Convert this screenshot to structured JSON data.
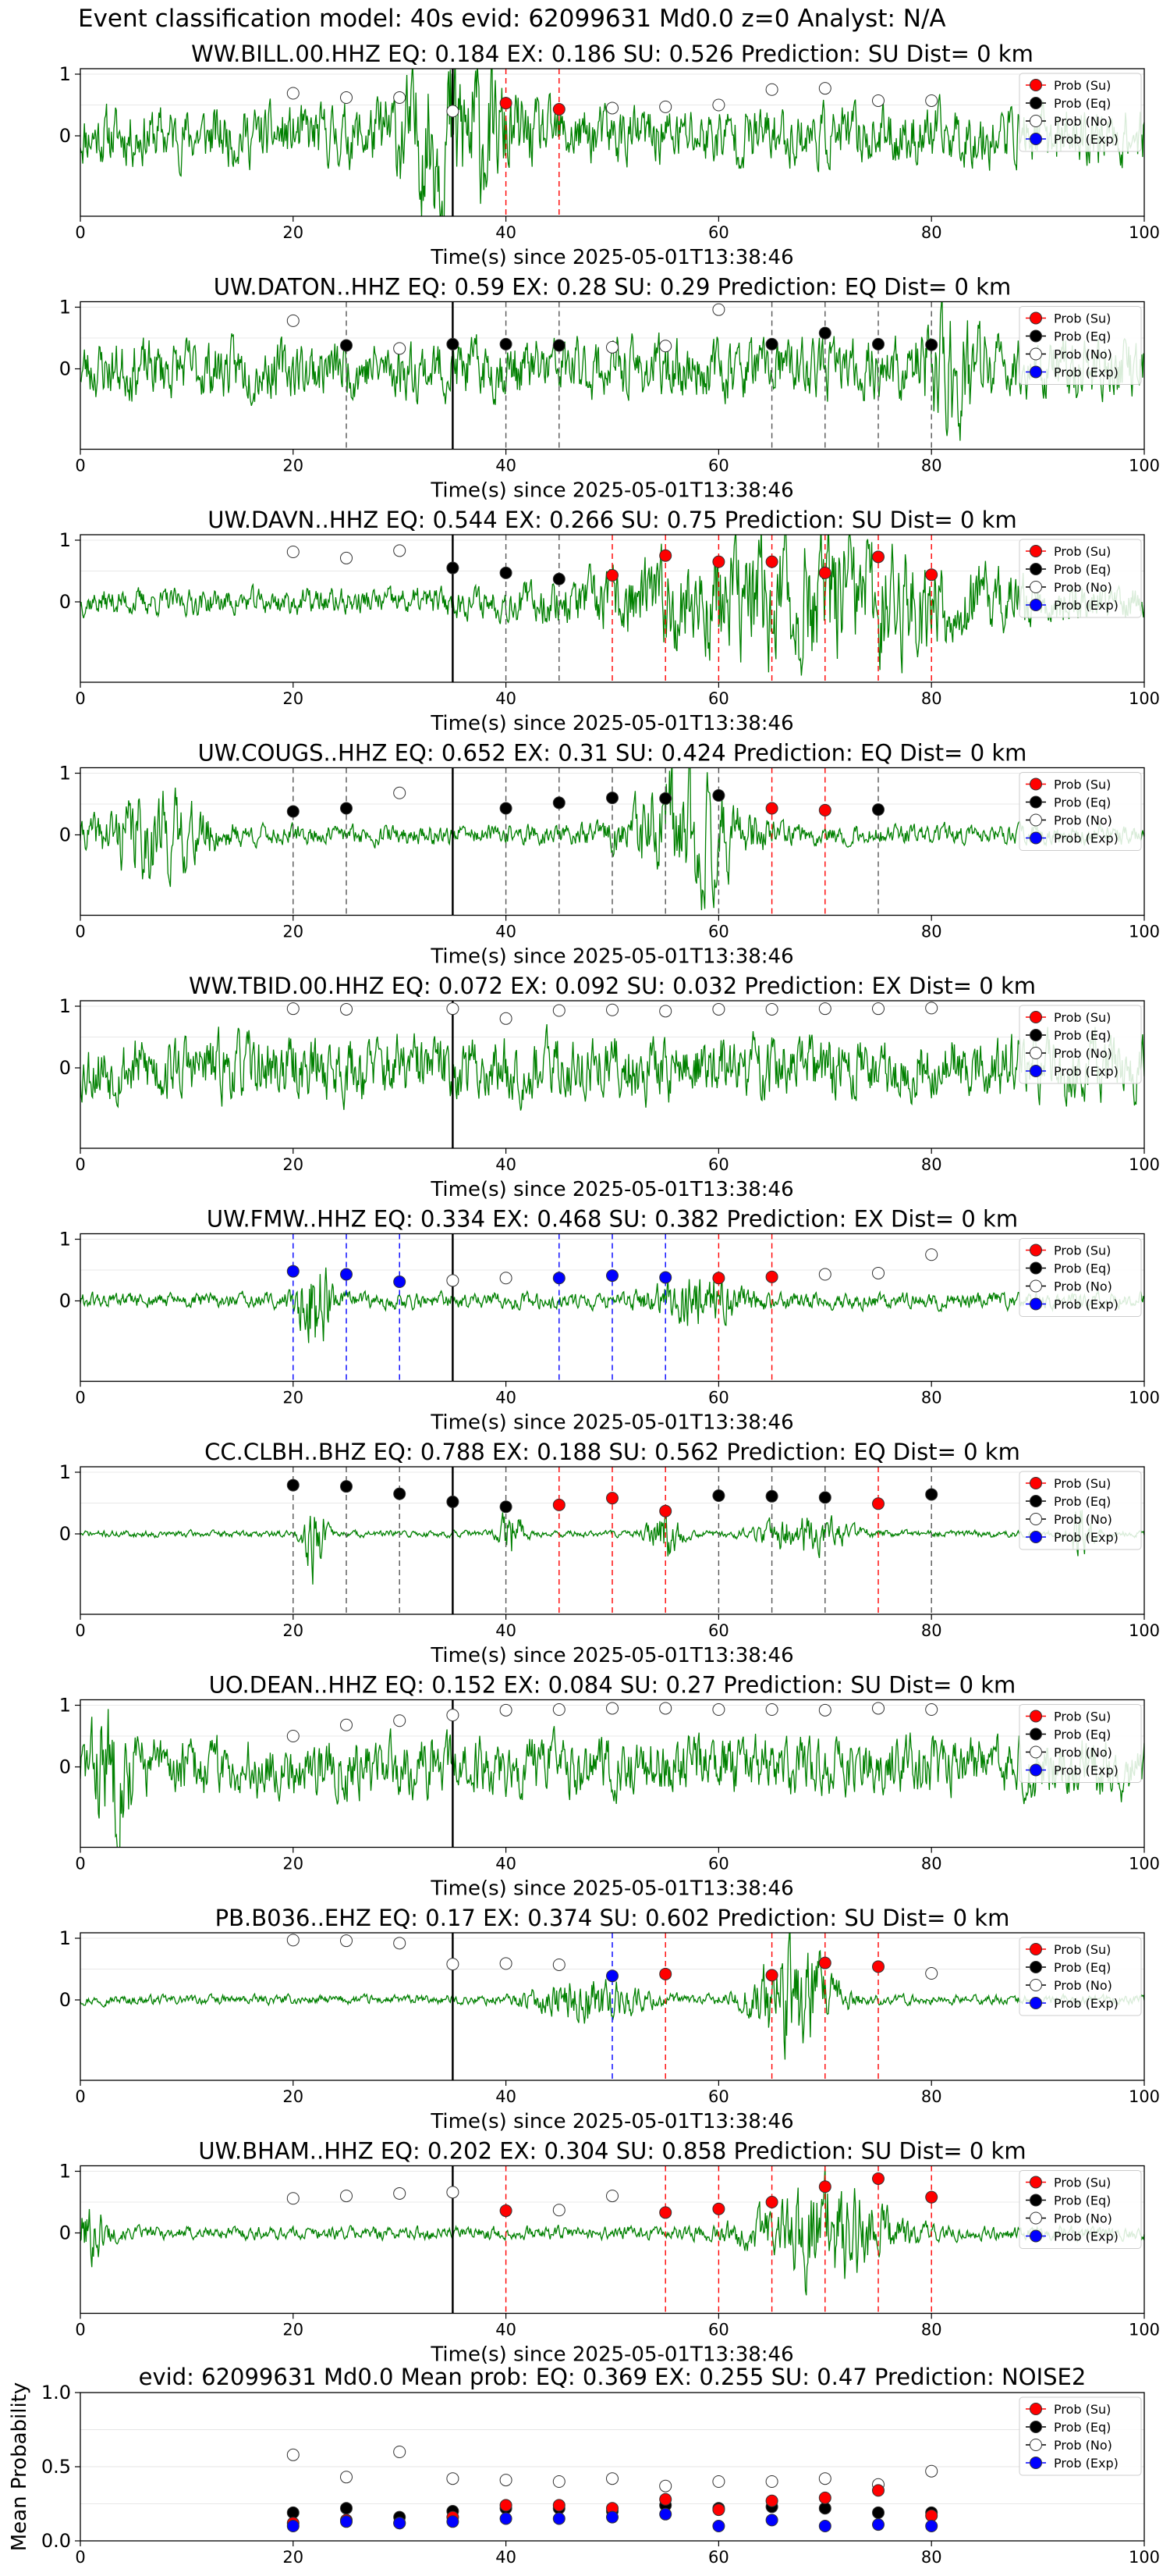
{
  "figure_title": "Event classification model: 40s evid: 62099631 Md0.0 z=0 Analyst: N/A",
  "shared": {
    "xlabel": "Time(s) since 2025-05-01T13:38:46",
    "x_ticks": [
      "0",
      "20",
      "40",
      "60",
      "80",
      "100"
    ],
    "y_ticks": [
      "1",
      "0"
    ],
    "legend": [
      "Prob (Su)",
      "Prob (Eq)",
      "Prob (No)",
      "Prob (Exp)"
    ],
    "colors": {
      "waveform": "#008000",
      "su": "#ff0000",
      "eq": "#000000",
      "no": "#ffffff",
      "exp": "#0000ff",
      "origin_line": "#000000"
    }
  },
  "chart_data": [
    {
      "type": "line",
      "station": "WW.BILL.00.HHZ",
      "title": "WW.BILL.00.HHZ    EQ: 0.184  EX: 0.186  SU: 0.526   Prediction: SU    Dist= 0 km",
      "xlim": [
        0,
        100
      ],
      "origin_x": 35,
      "waveform": {
        "seed": 11,
        "noise": 0.45,
        "bursts": [
          [
            35,
            0.9,
            5
          ]
        ]
      },
      "points": [
        [
          "no",
          20,
          0.69
        ],
        [
          "no",
          25,
          0.62
        ],
        [
          "no",
          30,
          0.62
        ],
        [
          "no",
          35,
          0.4
        ],
        [
          "su",
          40,
          0.53
        ],
        [
          "su",
          45,
          0.43
        ],
        [
          "no",
          50,
          0.45
        ],
        [
          "no",
          55,
          0.47
        ],
        [
          "no",
          60,
          0.5
        ],
        [
          "no",
          65,
          0.75
        ],
        [
          "no",
          70,
          0.77
        ],
        [
          "no",
          75,
          0.57
        ],
        [
          "no",
          80,
          0.57
        ]
      ],
      "vlines": [
        [
          "eq",
          35
        ],
        [
          "su",
          40
        ],
        [
          "su",
          45
        ]
      ]
    },
    {
      "type": "line",
      "station": "UW.DATON..HHZ",
      "title": "UW.DATON..HHZ   EQ: 0.59  EX: 0.28  SU: 0.29   Prediction: EQ    Dist= 0 km",
      "xlim": [
        0,
        100
      ],
      "origin_x": 35,
      "waveform": {
        "seed": 23,
        "noise": 0.45,
        "bursts": [
          [
            82,
            0.6,
            3
          ]
        ]
      },
      "points": [
        [
          "no",
          20,
          0.78
        ],
        [
          "eq",
          25,
          0.38
        ],
        [
          "no",
          30,
          0.33
        ],
        [
          "eq",
          35,
          0.4
        ],
        [
          "eq",
          40,
          0.4
        ],
        [
          "eq",
          45,
          0.38
        ],
        [
          "no",
          50,
          0.35
        ],
        [
          "no",
          55,
          0.37
        ],
        [
          "no",
          60,
          0.96
        ],
        [
          "eq",
          65,
          0.4
        ],
        [
          "eq",
          70,
          0.58
        ],
        [
          "eq",
          75,
          0.4
        ],
        [
          "eq",
          80,
          0.39
        ]
      ],
      "vlines": [
        [
          "eq",
          25
        ],
        [
          "eq",
          40
        ],
        [
          "eq",
          45
        ],
        [
          "eq",
          65
        ],
        [
          "eq",
          70
        ],
        [
          "eq",
          75
        ],
        [
          "eq",
          80
        ]
      ]
    },
    {
      "type": "line",
      "station": "UW.DAVN..HHZ",
      "title": "UW.DAVN..HHZ   EQ: 0.544  EX: 0.266  SU: 0.75   Prediction: SU    Dist= 0 km",
      "xlim": [
        0,
        100
      ],
      "origin_x": 35,
      "waveform": {
        "seed": 37,
        "noise": 0.2,
        "bursts": [
          [
            68,
            0.85,
            18
          ]
        ]
      },
      "points": [
        [
          "no",
          20,
          0.81
        ],
        [
          "no",
          25,
          0.71
        ],
        [
          "no",
          30,
          0.83
        ],
        [
          "eq",
          35,
          0.55
        ],
        [
          "eq",
          40,
          0.47
        ],
        [
          "eq",
          45,
          0.37
        ],
        [
          "su",
          50,
          0.43
        ],
        [
          "su",
          55,
          0.75
        ],
        [
          "su",
          60,
          0.65
        ],
        [
          "su",
          65,
          0.65
        ],
        [
          "su",
          70,
          0.47
        ],
        [
          "su",
          75,
          0.73
        ],
        [
          "su",
          80,
          0.44
        ]
      ],
      "vlines": [
        [
          "eq",
          40
        ],
        [
          "eq",
          45
        ],
        [
          "su",
          50
        ],
        [
          "su",
          55
        ],
        [
          "su",
          60
        ],
        [
          "su",
          65
        ],
        [
          "su",
          70
        ],
        [
          "su",
          75
        ],
        [
          "su",
          80
        ]
      ]
    },
    {
      "type": "line",
      "station": "UW.COUGS..HHZ",
      "title": "UW.COUGS..HHZ   EQ: 0.652  EX: 0.31  SU: 0.424   Prediction: EQ    Dist= 0 km",
      "xlim": [
        0,
        100
      ],
      "origin_x": 35,
      "waveform": {
        "seed": 41,
        "noise": 0.15,
        "bursts": [
          [
            7,
            0.55,
            5
          ],
          [
            57,
            0.9,
            5
          ]
        ]
      },
      "points": [
        [
          "eq",
          20,
          0.38
        ],
        [
          "eq",
          25,
          0.43
        ],
        [
          "no",
          30,
          0.68
        ],
        [
          "eq",
          40,
          0.43
        ],
        [
          "eq",
          45,
          0.52
        ],
        [
          "eq",
          50,
          0.6
        ],
        [
          "eq",
          55,
          0.59
        ],
        [
          "eq",
          60,
          0.64
        ],
        [
          "su",
          65,
          0.43
        ],
        [
          "su",
          70,
          0.4
        ],
        [
          "eq",
          75,
          0.41
        ]
      ],
      "vlines": [
        [
          "eq",
          20
        ],
        [
          "eq",
          25
        ],
        [
          "eq",
          40
        ],
        [
          "eq",
          45
        ],
        [
          "eq",
          50
        ],
        [
          "eq",
          55
        ],
        [
          "eq",
          60
        ],
        [
          "su",
          65
        ],
        [
          "su",
          70
        ],
        [
          "eq",
          75
        ]
      ]
    },
    {
      "type": "line",
      "station": "WW.TBID.00.HHZ",
      "title": "WW.TBID.00.HHZ   EQ: 0.072  EX: 0.092  SU: 0.032   Prediction: EX    Dist= 0 km",
      "xlim": [
        0,
        100
      ],
      "origin_x": 35,
      "waveform": {
        "seed": 53,
        "noise": 0.5,
        "bursts": []
      },
      "points": [
        [
          "no",
          20,
          0.96
        ],
        [
          "no",
          25,
          0.95
        ],
        [
          "no",
          35,
          0.96
        ],
        [
          "no",
          40,
          0.8
        ],
        [
          "no",
          45,
          0.93
        ],
        [
          "no",
          50,
          0.94
        ],
        [
          "no",
          55,
          0.92
        ],
        [
          "no",
          60,
          0.95
        ],
        [
          "no",
          65,
          0.95
        ],
        [
          "no",
          70,
          0.96
        ],
        [
          "no",
          75,
          0.96
        ],
        [
          "no",
          80,
          0.97
        ]
      ],
      "vlines": []
    },
    {
      "type": "line",
      "station": "UW.FMW..HHZ",
      "title": "UW.FMW..HHZ   EQ: 0.334  EX: 0.468  SU: 0.382   Prediction: EX    Dist= 0 km",
      "xlim": [
        0,
        100
      ],
      "origin_x": 35,
      "waveform": {
        "seed": 61,
        "noise": 0.12,
        "bursts": [
          [
            22,
            0.8,
            1.5
          ],
          [
            58,
            0.35,
            4
          ]
        ]
      },
      "points": [
        [
          "exp",
          20,
          0.48
        ],
        [
          "exp",
          25,
          0.43
        ],
        [
          "exp",
          30,
          0.31
        ],
        [
          "no",
          35,
          0.33
        ],
        [
          "no",
          40,
          0.37
        ],
        [
          "exp",
          45,
          0.37
        ],
        [
          "exp",
          50,
          0.41
        ],
        [
          "exp",
          55,
          0.38
        ],
        [
          "su",
          60,
          0.37
        ],
        [
          "su",
          65,
          0.39
        ],
        [
          "no",
          70,
          0.43
        ],
        [
          "no",
          75,
          0.45
        ],
        [
          "no",
          80,
          0.75
        ]
      ],
      "vlines": [
        [
          "exp",
          20
        ],
        [
          "exp",
          25
        ],
        [
          "exp",
          30
        ],
        [
          "exp",
          45
        ],
        [
          "exp",
          50
        ],
        [
          "exp",
          55
        ],
        [
          "su",
          60
        ],
        [
          "su",
          65
        ]
      ]
    },
    {
      "type": "line",
      "station": "CC.CLBH..BHZ",
      "title": "CC.CLBH..BHZ   EQ: 0.788  EX: 0.188  SU: 0.562   Prediction: EQ    Dist= 0 km",
      "xlim": [
        0,
        100
      ],
      "origin_x": 35,
      "waveform": {
        "seed": 71,
        "noise": 0.05,
        "bursts": [
          [
            22,
            0.65,
            1
          ],
          [
            40.5,
            0.45,
            1
          ],
          [
            55,
            0.35,
            1.5
          ],
          [
            68,
            0.3,
            4
          ],
          [
            94,
            0.5,
            1
          ]
        ]
      },
      "points": [
        [
          "eq",
          20,
          0.79
        ],
        [
          "eq",
          25,
          0.77
        ],
        [
          "eq",
          30,
          0.65
        ],
        [
          "eq",
          35,
          0.52
        ],
        [
          "eq",
          40,
          0.44
        ],
        [
          "su",
          45,
          0.47
        ],
        [
          "su",
          50,
          0.58
        ],
        [
          "su",
          55,
          0.37
        ],
        [
          "eq",
          60,
          0.62
        ],
        [
          "eq",
          65,
          0.61
        ],
        [
          "eq",
          70,
          0.59
        ],
        [
          "su",
          75,
          0.49
        ],
        [
          "eq",
          80,
          0.64
        ]
      ],
      "vlines": [
        [
          "eq",
          20
        ],
        [
          "eq",
          25
        ],
        [
          "eq",
          30
        ],
        [
          "eq",
          40
        ],
        [
          "su",
          45
        ],
        [
          "su",
          50
        ],
        [
          "su",
          55
        ],
        [
          "eq",
          60
        ],
        [
          "eq",
          65
        ],
        [
          "eq",
          70
        ],
        [
          "su",
          75
        ],
        [
          "eq",
          80
        ]
      ]
    },
    {
      "type": "line",
      "station": "UO.DEAN..HHZ",
      "title": "UO.DEAN..HHZ   EQ: 0.152  EX: 0.084  SU: 0.27   Prediction: SU    Dist= 0 km",
      "xlim": [
        0,
        100
      ],
      "origin_x": 35,
      "waveform": {
        "seed": 83,
        "noise": 0.45,
        "bursts": [
          [
            3,
            0.6,
            2
          ]
        ]
      },
      "points": [
        [
          "no",
          20,
          0.5
        ],
        [
          "no",
          25,
          0.68
        ],
        [
          "no",
          30,
          0.75
        ],
        [
          "no",
          35,
          0.84
        ],
        [
          "no",
          40,
          0.92
        ],
        [
          "no",
          45,
          0.93
        ],
        [
          "no",
          50,
          0.95
        ],
        [
          "no",
          55,
          0.95
        ],
        [
          "no",
          60,
          0.93
        ],
        [
          "no",
          65,
          0.93
        ],
        [
          "no",
          70,
          0.92
        ],
        [
          "no",
          75,
          0.95
        ],
        [
          "no",
          80,
          0.93
        ]
      ],
      "vlines": []
    },
    {
      "type": "line",
      "station": "PB.B036..EHZ",
      "title": "PB.B036..EHZ   EQ: 0.17  EX: 0.374  SU: 0.602   Prediction: SU    Dist= 0 km",
      "xlim": [
        0,
        100
      ],
      "origin_x": 35,
      "waveform": {
        "seed": 97,
        "noise": 0.07,
        "bursts": [
          [
            48,
            0.3,
            5
          ],
          [
            67,
            0.92,
            3.5
          ]
        ]
      },
      "points": [
        [
          "no",
          20,
          0.97
        ],
        [
          "no",
          25,
          0.96
        ],
        [
          "no",
          30,
          0.92
        ],
        [
          "no",
          35,
          0.58
        ],
        [
          "no",
          40,
          0.59
        ],
        [
          "no",
          45,
          0.57
        ],
        [
          "exp",
          50,
          0.39
        ],
        [
          "su",
          55,
          0.42
        ],
        [
          "su",
          65,
          0.4
        ],
        [
          "su",
          70,
          0.6
        ],
        [
          "su",
          75,
          0.54
        ],
        [
          "no",
          80,
          0.43
        ]
      ],
      "vlines": [
        [
          "exp",
          50
        ],
        [
          "su",
          55
        ],
        [
          "su",
          65
        ],
        [
          "su",
          70
        ],
        [
          "su",
          75
        ]
      ]
    },
    {
      "type": "line",
      "station": "UW.BHAM..HHZ",
      "title": "UW.BHAM..HHZ   EQ: 0.202  EX: 0.304  SU: 0.858   Prediction: SU    Dist= 0 km",
      "xlim": [
        0,
        100
      ],
      "origin_x": 35,
      "waveform": {
        "seed": 101,
        "noise": 0.1,
        "bursts": [
          [
            1,
            0.4,
            1.5
          ],
          [
            70,
            0.75,
            6
          ]
        ]
      },
      "points": [
        [
          "no",
          20,
          0.56
        ],
        [
          "no",
          25,
          0.6
        ],
        [
          "no",
          30,
          0.64
        ],
        [
          "no",
          35,
          0.66
        ],
        [
          "su",
          40,
          0.36
        ],
        [
          "no",
          45,
          0.37
        ],
        [
          "no",
          50,
          0.6
        ],
        [
          "su",
          55,
          0.33
        ],
        [
          "su",
          60,
          0.39
        ],
        [
          "su",
          65,
          0.5
        ],
        [
          "su",
          70,
          0.75
        ],
        [
          "su",
          75,
          0.88
        ],
        [
          "su",
          80,
          0.58
        ]
      ],
      "vlines": [
        [
          "su",
          40
        ],
        [
          "su",
          55
        ],
        [
          "su",
          60
        ],
        [
          "su",
          65
        ],
        [
          "su",
          70
        ],
        [
          "su",
          75
        ],
        [
          "su",
          80
        ]
      ]
    },
    {
      "type": "scatter",
      "station": "mean",
      "title": "evid: 62099631  Md0.0   Mean prob:   EQ: 0.369  EX: 0.255  SU: 0.47   Prediction: NOISE2",
      "ylabel": "Mean Probability",
      "xlim": [
        0,
        100
      ],
      "ylim": [
        0,
        1
      ],
      "y_ticks": [
        "1.0",
        "0.5",
        "0.0"
      ],
      "grid": true,
      "series": [
        {
          "key": "no",
          "x": [
            20,
            25,
            30,
            35,
            40,
            45,
            50,
            55,
            60,
            65,
            70,
            75,
            80
          ],
          "y": [
            0.58,
            0.43,
            0.6,
            0.42,
            0.41,
            0.4,
            0.42,
            0.37,
            0.4,
            0.4,
            0.42,
            0.38,
            0.47
          ]
        },
        {
          "key": "eq",
          "x": [
            20,
            25,
            30,
            35,
            40,
            45,
            50,
            55,
            60,
            65,
            70,
            75,
            80
          ],
          "y": [
            0.19,
            0.22,
            0.16,
            0.2,
            0.22,
            0.22,
            0.2,
            0.24,
            0.22,
            0.23,
            0.22,
            0.19,
            0.19
          ]
        },
        {
          "key": "su",
          "x": [
            20,
            25,
            30,
            35,
            40,
            45,
            50,
            55,
            60,
            65,
            70,
            75,
            80
          ],
          "y": [
            0.12,
            0.14,
            0.12,
            0.16,
            0.24,
            0.24,
            0.22,
            0.28,
            0.21,
            0.27,
            0.29,
            0.34,
            0.17
          ]
        },
        {
          "key": "exp",
          "x": [
            20,
            25,
            30,
            35,
            40,
            45,
            50,
            55,
            60,
            65,
            70,
            75,
            80
          ],
          "y": [
            0.1,
            0.13,
            0.12,
            0.13,
            0.15,
            0.15,
            0.16,
            0.18,
            0.1,
            0.14,
            0.1,
            0.11,
            0.1
          ]
        }
      ]
    }
  ]
}
